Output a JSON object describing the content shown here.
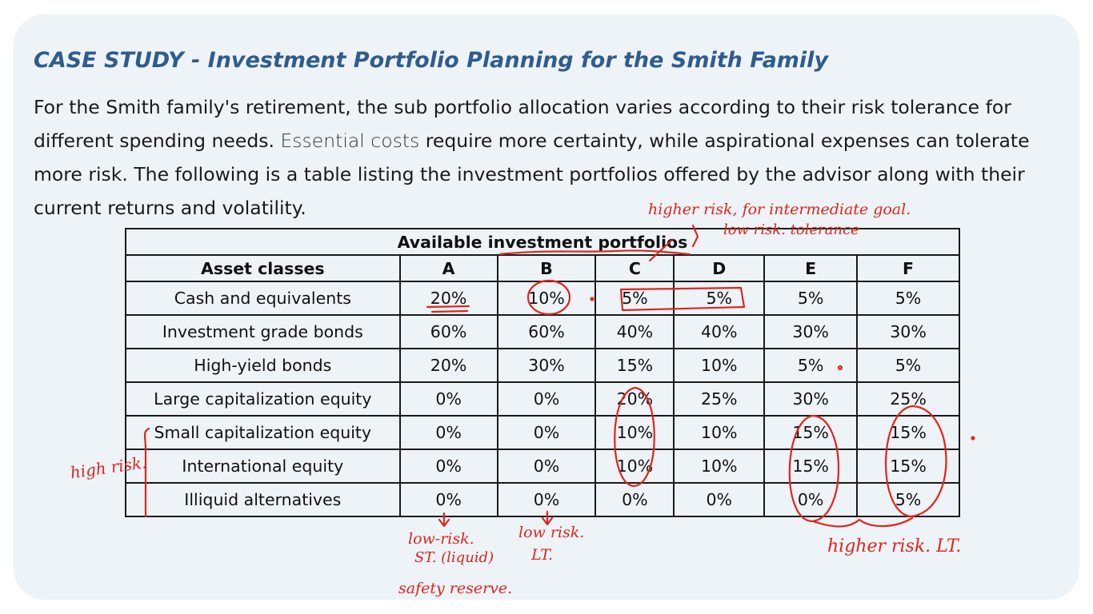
{
  "title": "CASE STUDY - Investment Portfolio Planning for the Smith Family",
  "paragraph": {
    "part1": "For the Smith family's retirement, the sub portfolio allocation varies according to their risk tolerance for different spending needs. ",
    "highlight": "Essential costs",
    "part2": " require more certainty, while aspirational expenses can tolerate more risk. The following is a table listing the investment portfolios offered by the advisor along with their current returns and volatility."
  },
  "table": {
    "caption": "Available investment portfolios",
    "headers": [
      "Asset classes",
      "A",
      "B",
      "C",
      "D",
      "E",
      "F"
    ],
    "rows": [
      [
        "Cash and equivalents",
        "20%",
        "10%",
        "5%",
        "5%",
        "5%",
        "5%"
      ],
      [
        "Investment grade bonds",
        "60%",
        "60%",
        "40%",
        "40%",
        "30%",
        "30%"
      ],
      [
        "High-yield bonds",
        "20%",
        "30%",
        "15%",
        "10%",
        "5%",
        "5%"
      ],
      [
        "Large capitalization equity",
        "0%",
        "0%",
        "20%",
        "25%",
        "30%",
        "25%"
      ],
      [
        "Small capitalization equity",
        "0%",
        "0%",
        "10%",
        "10%",
        "15%",
        "15%"
      ],
      [
        "International equity",
        "0%",
        "0%",
        "10%",
        "10%",
        "15%",
        "15%"
      ],
      [
        "Illiquid alternatives",
        "0%",
        "0%",
        "0%",
        "0%",
        "0%",
        "5%"
      ]
    ]
  },
  "annotations": {
    "note_c_d_line1": "higher risk, for intermediate goal.",
    "note_c_d_line2": "low risk. tolerance",
    "note_high_risk": "high risk.",
    "note_a_line1": "low-risk.",
    "note_a_line2": "ST. (liquid)",
    "note_a_line3": "safety reserve.",
    "note_b_line1": "low risk.",
    "note_b_line2": "LT.",
    "note_e_f": "higher risk. LT.",
    "ink_color": "#e0251b"
  }
}
